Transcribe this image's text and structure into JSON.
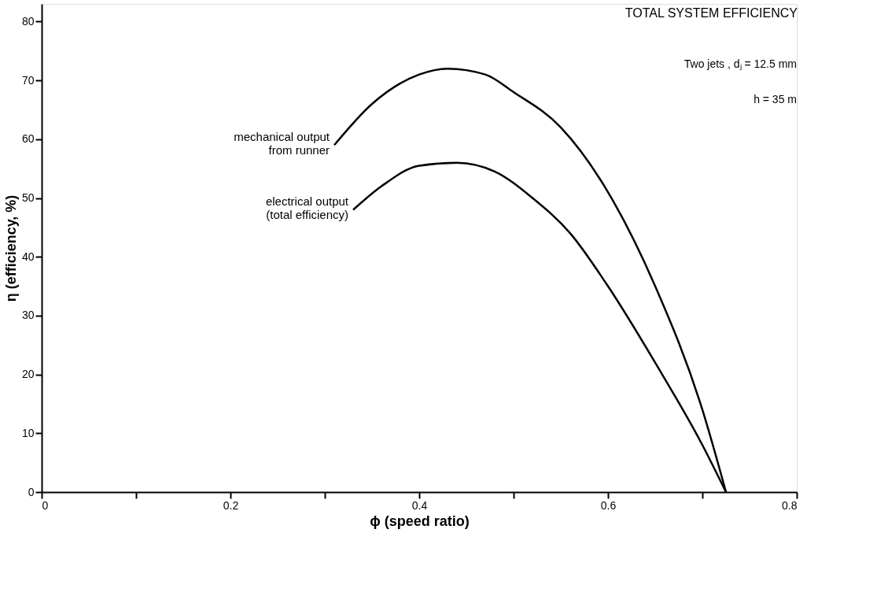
{
  "chart_data": {
    "type": "line",
    "title": "TOTAL SYSTEM EFFICIENCY",
    "xlabel": "ϕ (speed ratio)",
    "ylabel": "η (efficiency, %)",
    "annotations": [
      "Two jets , dⱼ = 12.5 mm",
      "h = 35 m"
    ],
    "xlim": [
      0,
      0.8
    ],
    "ylim": [
      0,
      83
    ],
    "xticks": [
      0,
      {
        "value": 0.1,
        "label": null
      },
      0.2,
      {
        "value": 0.3,
        "label": null
      },
      0.4,
      {
        "value": 0.5,
        "label": null
      },
      0.6,
      {
        "value": 0.7,
        "label": null
      },
      0.8
    ],
    "yticks": [
      0,
      10,
      20,
      30,
      40,
      50,
      60,
      70,
      80
    ],
    "grid": false,
    "marker": "none",
    "line_style": "solid",
    "series": [
      {
        "name": "mechanical output\nfrom runner",
        "color": "#000000",
        "x": [
          0.31,
          0.35,
          0.4,
          0.43,
          0.47,
          0.5,
          0.55,
          0.6,
          0.65,
          0.7,
          0.725
        ],
        "values": [
          59,
          66,
          71,
          72,
          71,
          68,
          62,
          51,
          35,
          14,
          0
        ]
      },
      {
        "name": "electrical output\n(total efficiency)",
        "color": "#000000",
        "x": [
          0.33,
          0.36,
          0.4,
          0.44,
          0.48,
          0.52,
          0.56,
          0.6,
          0.65,
          0.7,
          0.725
        ],
        "values": [
          48,
          52,
          55.5,
          56,
          54.5,
          50,
          44,
          35,
          22,
          8,
          0
        ]
      }
    ]
  }
}
